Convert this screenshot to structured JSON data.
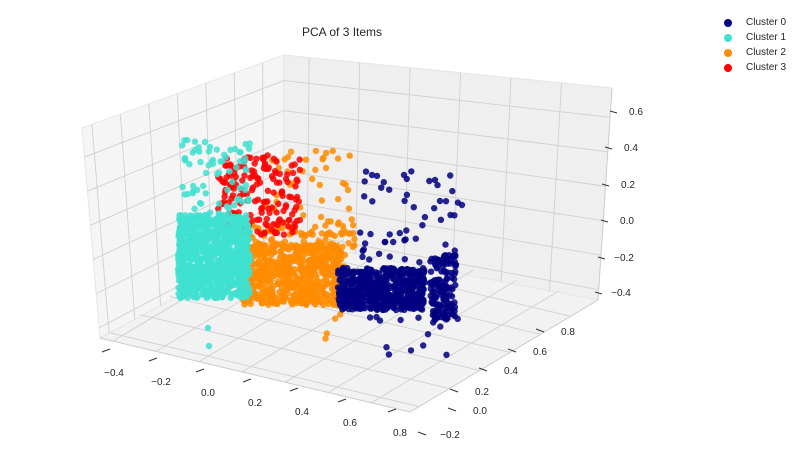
{
  "chart_data": {
    "type": "scatter3d",
    "title": "PCA of 3 Items",
    "xlabel": "",
    "ylabel": "",
    "zlabel": "",
    "x_ticks": [
      "−0.4",
      "−0.2",
      "0.0",
      "0.2",
      "0.4",
      "0.6",
      "0.8"
    ],
    "y_ticks": [
      "−0.2",
      "0.0",
      "0.2",
      "0.4",
      "0.6",
      "0.8"
    ],
    "z_ticks": [
      "−0.4",
      "−0.2",
      "0.0",
      "0.2",
      "0.4",
      "0.6"
    ],
    "xlim": [
      -0.5,
      0.85
    ],
    "ylim": [
      -0.25,
      0.9
    ],
    "zlim": [
      -0.45,
      0.65
    ],
    "grid": true,
    "legend_position": "upper right (outside)",
    "series": [
      {
        "name": "Cluster 0",
        "color": "#000080",
        "region": {
          "x": [
            0.35,
            0.8
          ],
          "y": [
            0.0,
            0.85
          ],
          "z": [
            -0.4,
            0.3
          ]
        },
        "description": "dense band at x≈0.4–0.8, scattered points up to z≈0.3"
      },
      {
        "name": "Cluster 1",
        "color": "#40e0d0",
        "region": {
          "x": [
            -0.2,
            0.05
          ],
          "y": [
            -0.2,
            0.4
          ],
          "z": [
            -0.3,
            0.5
          ]
        },
        "description": "dense block near x≈-0.1, outliers down to z≈-0.45"
      },
      {
        "name": "Cluster 2",
        "color": "#ff8c00",
        "region": {
          "x": [
            0.0,
            0.45
          ],
          "y": [
            -0.1,
            0.5
          ],
          "z": [
            -0.35,
            0.3
          ]
        },
        "description": "dense band between clusters 1 and 0"
      },
      {
        "name": "Cluster 3",
        "color": "#ff0000",
        "region": {
          "x": [
            -0.05,
            0.15
          ],
          "y": [
            0.0,
            0.4
          ],
          "z": [
            0.0,
            0.45
          ]
        },
        "description": "elevated cloud above clusters 1/2"
      }
    ]
  },
  "title": "PCA of 3 Items",
  "legend": [
    {
      "label": "Cluster 0",
      "color": "#000080"
    },
    {
      "label": "Cluster 1",
      "color": "#40e0d0"
    },
    {
      "label": "Cluster 2",
      "color": "#ff8c00"
    },
    {
      "label": "Cluster 3",
      "color": "#ff0000"
    }
  ],
  "axes": {
    "x_ticks": [
      "−0.4",
      "−0.2",
      "0.0",
      "0.2",
      "0.4",
      "0.6",
      "0.8"
    ],
    "y_ticks": [
      "−0.2",
      "0.0",
      "0.2",
      "0.4",
      "0.6",
      "0.8"
    ],
    "z_ticks": [
      "−0.4",
      "−0.2",
      "0.0",
      "0.2",
      "0.4",
      "0.6"
    ]
  }
}
